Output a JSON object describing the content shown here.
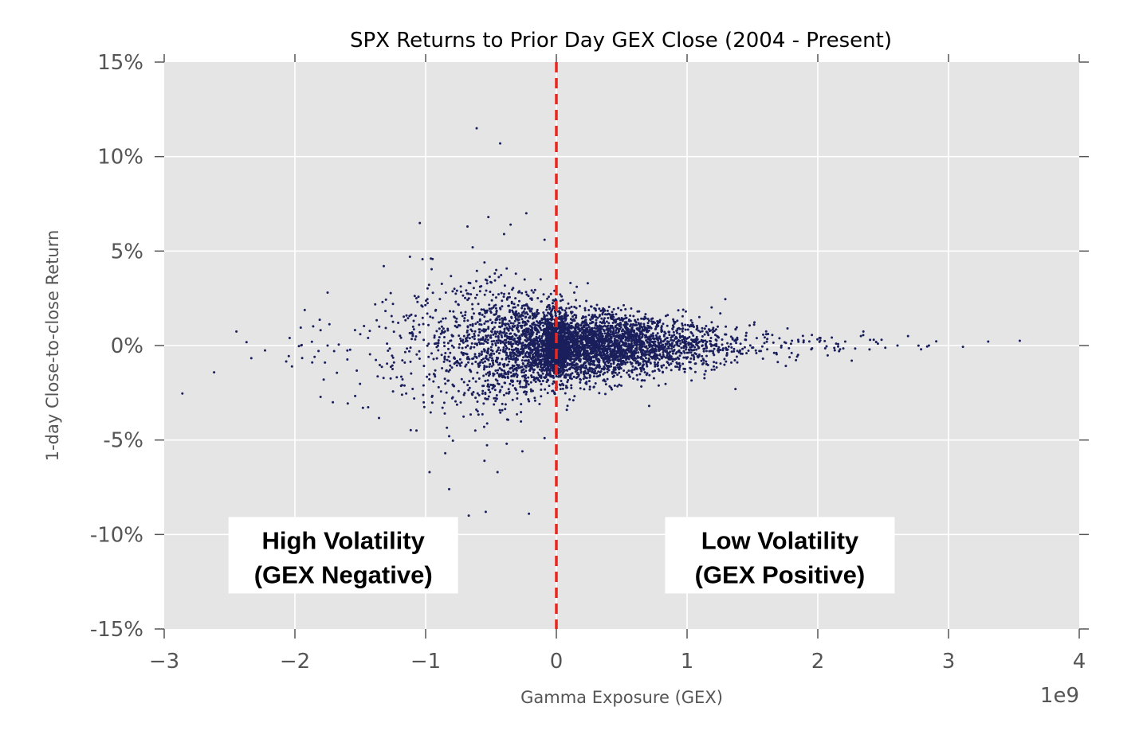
{
  "chart_data": {
    "type": "scatter",
    "title": "SPX Returns to Prior Day GEX Close (2004 - Present)",
    "xlabel": "Gamma Exposure (GEX)",
    "ylabel": "1-day Close-to-close Return",
    "x_offset_label": "1e9",
    "xlim": [
      -3,
      4
    ],
    "ylim": [
      -15,
      15
    ],
    "x_scale": 1000000000,
    "x_ticks": [
      -3,
      -2,
      -1,
      0,
      1,
      2,
      3,
      4
    ],
    "x_tick_labels": [
      "−3",
      "−2",
      "−1",
      "0",
      "1",
      "2",
      "3",
      "4"
    ],
    "y_ticks": [
      15,
      10,
      5,
      0,
      -5,
      -10,
      -15
    ],
    "y_tick_labels": [
      "15%",
      "10%",
      "5%",
      "0%",
      "-5%",
      "-10%",
      "-15%"
    ],
    "grid": true,
    "background_color": "#e5e5e5",
    "point_color": "#1a1f5c",
    "zero_line": {
      "x": 0,
      "color": "#e8281e",
      "style": "dashed"
    },
    "annotations": [
      {
        "lines": [
          "High Volatility",
          "(GEX Negative)"
        ],
        "x": -1.63,
        "y": -11.1
      },
      {
        "lines": [
          "Low Volatility",
          "(GEX Positive)"
        ],
        "x": 1.71,
        "y": -11.1
      }
    ],
    "series": [
      {
        "name": "",
        "points": [
          [
            -0.61,
            11.5
          ],
          [
            -0.43,
            10.7
          ],
          [
            -0.35,
            6.4
          ],
          [
            -0.52,
            6.8
          ],
          [
            -0.23,
            7.0
          ],
          [
            -0.68,
            6.3
          ],
          [
            -0.09,
            5.6
          ],
          [
            -0.64,
            5.2
          ],
          [
            -1.32,
            4.2
          ],
          [
            -1.12,
            4.7
          ],
          [
            -0.96,
            4.6
          ],
          [
            -0.55,
            4.4
          ],
          [
            -1.75,
            2.8
          ],
          [
            -2.04,
            0.4
          ],
          [
            -1.87,
            0.2
          ],
          [
            -1.75,
            0.0
          ],
          [
            -1.77,
            -0.9
          ],
          [
            -1.78,
            -1.8
          ],
          [
            -1.71,
            -3.0
          ],
          [
            -1.48,
            -3.3
          ],
          [
            -0.97,
            -6.7
          ],
          [
            -0.82,
            -7.6
          ],
          [
            -0.67,
            -9.0
          ],
          [
            -0.54,
            -8.8
          ],
          [
            -0.21,
            -8.9
          ],
          [
            -0.85,
            -5.7
          ],
          [
            -0.55,
            -6.1
          ],
          [
            -0.45,
            -6.7
          ],
          [
            -0.26,
            -5.6
          ],
          [
            -1.07,
            -4.5
          ],
          [
            -0.82,
            -4.8
          ],
          [
            -0.62,
            -4.5
          ],
          [
            -0.38,
            -5.2
          ],
          [
            -0.09,
            -4.9
          ],
          [
            0.71,
            -3.2
          ],
          [
            1.37,
            -2.3
          ],
          [
            2.17,
            -0.2
          ],
          [
            2.26,
            -0.8
          ],
          [
            2.4,
            0.3
          ],
          [
            2.46,
            0.1
          ],
          [
            2.61,
            0.0
          ],
          [
            2.69,
            0.5
          ],
          [
            2.79,
            -0.2
          ],
          [
            2.85,
            0.0
          ],
          [
            2.33,
            0.5
          ],
          [
            2.14,
            0.1
          ],
          [
            0.99,
            1.8
          ],
          [
            -0.27,
            -3.1
          ],
          [
            -0.48,
            -2.2
          ],
          [
            -0.3,
            -2.8
          ],
          [
            -0.12,
            3.5
          ],
          [
            -0.31,
            3.8
          ],
          [
            -0.46,
            4.0
          ],
          [
            -0.78,
            3.0
          ],
          [
            -1.5,
            0.6
          ],
          [
            -1.44,
            0.4
          ],
          [
            -1.33,
            2.3
          ],
          [
            -1.25,
            2.2
          ],
          [
            -1.21,
            1.2
          ],
          [
            -0.4,
            5.9
          ],
          [
            0.24,
            3.3
          ],
          [
            0.15,
            2.4
          ],
          [
            0.28,
            1.5
          ],
          [
            0.1,
            1.0
          ],
          [
            0.21,
            -1.4
          ],
          [
            0.3,
            -2.0
          ],
          [
            0.13,
            -2.9
          ],
          [
            0.08,
            -3.4
          ],
          [
            0.43,
            0.6
          ],
          [
            0.56,
            -0.3
          ],
          [
            0.62,
            0.9
          ],
          [
            0.74,
            -0.6
          ],
          [
            0.85,
            0.4
          ],
          [
            0.92,
            -0.9
          ],
          [
            1.06,
            0.2
          ],
          [
            1.17,
            -0.3
          ],
          [
            1.23,
            0.5
          ],
          [
            1.34,
            -0.1
          ],
          [
            1.45,
            0.3
          ],
          [
            1.53,
            -0.4
          ],
          [
            1.61,
            0.2
          ],
          [
            1.72,
            -0.1
          ],
          [
            1.85,
            0.3
          ],
          [
            1.95,
            -0.2
          ],
          [
            2.02,
            0.4
          ],
          [
            0.05,
            0.3
          ],
          [
            -0.03,
            -0.5
          ],
          [
            0.02,
            0.9
          ],
          [
            -0.07,
            1.4
          ],
          [
            0.11,
            -0.8
          ],
          [
            -0.15,
            0.6
          ],
          [
            -0.21,
            -1.1
          ],
          [
            -0.34,
            0.9
          ],
          [
            -0.42,
            -1.6
          ],
          [
            -0.59,
            1.7
          ],
          [
            -0.71,
            -0.4
          ],
          [
            -0.83,
            0.8
          ],
          [
            -0.94,
            -1.9
          ],
          [
            -1.05,
            1.1
          ],
          [
            -1.16,
            -0.9
          ],
          [
            -0.26,
            2.1
          ],
          [
            -0.18,
            -2.4
          ],
          [
            0.04,
            2.6
          ],
          [
            0.37,
            -1.2
          ],
          [
            0.49,
            1.2
          ]
        ]
      }
    ]
  }
}
